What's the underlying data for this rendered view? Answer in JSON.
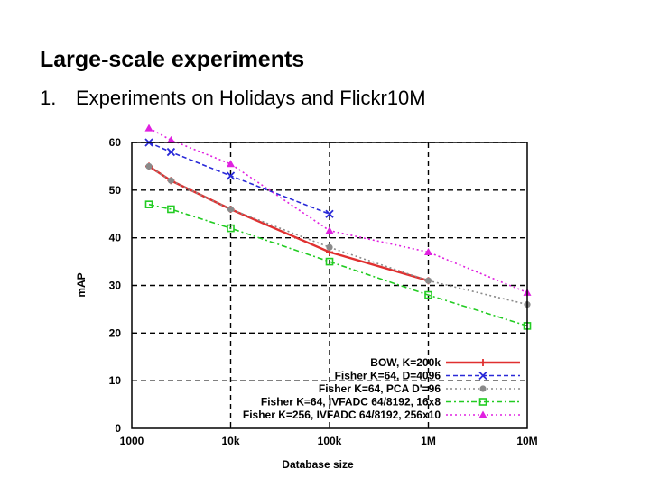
{
  "slide": {
    "title": "Large-scale experiments",
    "bullet_number": "1.",
    "bullet_text": "Experiments on Holidays and Flickr10M"
  },
  "chart_data": {
    "type": "line",
    "title": "",
    "xlabel": "Database size",
    "ylabel": "mAP",
    "xscale": "log",
    "xlim": [
      1000,
      10000000
    ],
    "ylim": [
      0,
      60
    ],
    "x_ticks": [
      1000,
      10000,
      100000,
      1000000,
      10000000
    ],
    "x_tick_labels": [
      "1000",
      "10k",
      "100k",
      "1M",
      "10M"
    ],
    "y_ticks": [
      0,
      10,
      20,
      30,
      40,
      50,
      60
    ],
    "y_tick_labels": [
      "0",
      "10",
      "20",
      "30",
      "40",
      "50",
      "60"
    ],
    "grid": true,
    "legend_position": "bottom-right",
    "series": [
      {
        "name": "BOW, K=200k",
        "color": "#e03030",
        "dash": "solid",
        "marker": "plus",
        "x": [
          1491,
          2491,
          10000,
          100000,
          1000000
        ],
        "y": [
          55,
          52,
          46,
          37,
          31
        ]
      },
      {
        "name": "Fisher K=64, D=4096",
        "color": "#2a2ad8",
        "dash": "dashed",
        "marker": "x",
        "x": [
          1491,
          2491,
          10000,
          100000
        ],
        "y": [
          60,
          58,
          53,
          45
        ]
      },
      {
        "name": "Fisher K=64, PCA D'=96",
        "color": "#8a8a8a",
        "dash": "dotted",
        "marker": "circle",
        "x": [
          1491,
          2491,
          10000,
          100000,
          1000000,
          10000000
        ],
        "y": [
          55,
          52,
          46,
          38,
          31,
          26
        ]
      },
      {
        "name": "Fisher K=64, IVFADC 64/8192, 16x8",
        "color": "#22cc22",
        "dash": "dashdot",
        "marker": "square",
        "x": [
          1491,
          2491,
          10000,
          100000,
          1000000,
          10000000
        ],
        "y": [
          47,
          46,
          42,
          35,
          28,
          21.5
        ]
      },
      {
        "name": "Fisher K=256, IVFADC 64/8192, 256x10",
        "color": "#e020e0",
        "dash": "dotted",
        "marker": "triangle",
        "x": [
          1491,
          2491,
          10000,
          100000,
          1000000,
          10000000
        ],
        "y": [
          63,
          60.5,
          55.5,
          41.5,
          37,
          28.5
        ]
      }
    ]
  }
}
